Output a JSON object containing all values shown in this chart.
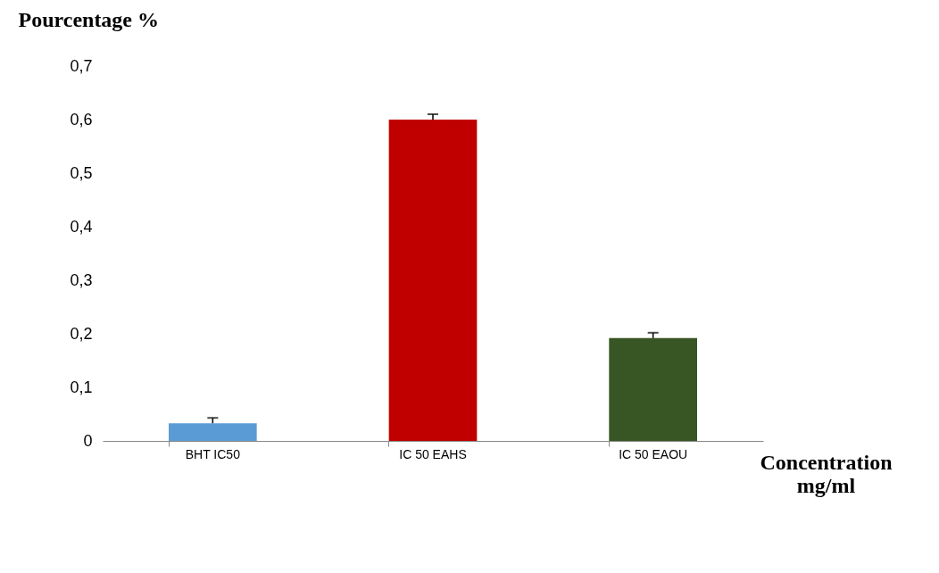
{
  "chart_data": {
    "type": "bar",
    "ylabel": "Pourcentage %",
    "xlabel": "Concentration mg/ml",
    "categories": [
      "BHT IC50",
      "IC 50 EAHS",
      "IC 50 EAOU"
    ],
    "values": [
      0.033,
      0.6,
      0.192
    ],
    "colors": [
      "#5b9bd5",
      "#c00000",
      "#375623"
    ],
    "errors": [
      [
        0.033,
        0.043
      ],
      [
        0.6,
        0.61
      ],
      [
        0.192,
        0.202
      ]
    ],
    "ylim": [
      0,
      0.7
    ],
    "yticks": [
      0,
      {
        "value": 0.1,
        "label": "0,1"
      },
      {
        "value": 0.2,
        "label": "0,2"
      },
      {
        "value": 0.3,
        "label": "0,3"
      },
      {
        "value": 0.4,
        "label": "0,4"
      },
      {
        "value": 0.5,
        "label": "0,5"
      },
      {
        "value": 0.6,
        "label": "0,6"
      },
      {
        "value": 0.7,
        "label": "0,7"
      }
    ],
    "grid": false,
    "legend": false
  }
}
